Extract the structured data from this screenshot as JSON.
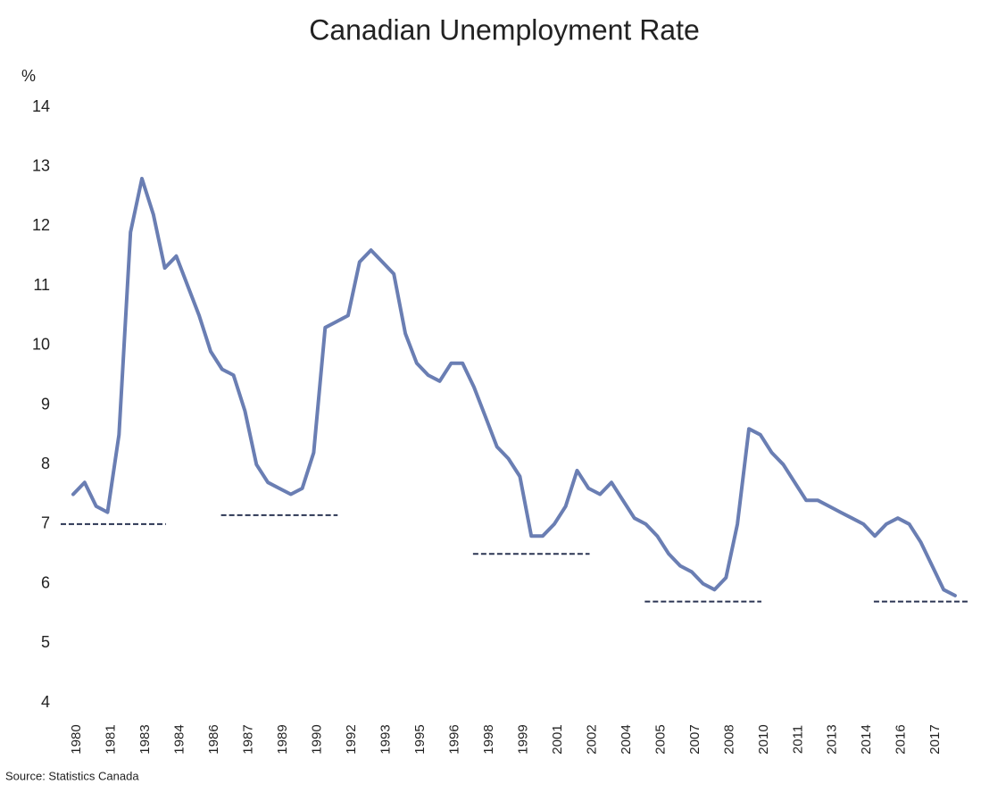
{
  "chart_data": {
    "type": "line",
    "title": "Canadian Unemployment Rate",
    "y_label": "%",
    "source": "Source: Statistics Canada",
    "color": "#6a7eb3",
    "categories": [
      "1980",
      null,
      null,
      "1981",
      null,
      null,
      "1983",
      null,
      null,
      "1984",
      null,
      null,
      "1986",
      null,
      null,
      "1987",
      null,
      null,
      "1989",
      null,
      null,
      "1990",
      null,
      null,
      "1992",
      null,
      null,
      "1993",
      null,
      null,
      "1995",
      null,
      null,
      "1996",
      null,
      null,
      "1998",
      null,
      null,
      "1999",
      null,
      null,
      "2001",
      null,
      null,
      "2002",
      null,
      null,
      "2004",
      null,
      null,
      "2005",
      null,
      null,
      "2007",
      null,
      null,
      "2008",
      null,
      null,
      "2010",
      null,
      null,
      "2011",
      null,
      null,
      "2013",
      null,
      null,
      "2014",
      null,
      null,
      "2016",
      null,
      null,
      "2017",
      null,
      null
    ],
    "values": [
      7.5,
      7.7,
      7.3,
      7.2,
      8.5,
      11.9,
      12.8,
      12.2,
      11.3,
      11.5,
      11.0,
      10.5,
      9.9,
      9.6,
      9.5,
      8.9,
      8.0,
      7.7,
      7.6,
      7.5,
      7.6,
      8.2,
      10.3,
      10.4,
      10.5,
      11.4,
      11.6,
      11.4,
      11.2,
      10.2,
      9.7,
      9.5,
      9.4,
      9.7,
      9.7,
      9.3,
      8.8,
      8.3,
      8.1,
      7.8,
      6.8,
      6.8,
      7.0,
      7.3,
      7.9,
      7.6,
      7.5,
      7.7,
      7.4,
      7.1,
      7.0,
      6.8,
      6.5,
      6.3,
      6.2,
      6.0,
      5.9,
      6.1,
      7.0,
      8.6,
      8.5,
      8.2,
      8.0,
      7.7,
      7.4,
      7.4,
      7.3,
      7.2,
      7.1,
      7.0,
      6.8,
      7.0,
      7.1,
      7.0,
      6.7,
      6.3,
      5.9,
      5.8
    ],
    "reference_lines": [
      {
        "value": 7.0,
        "start": 0,
        "end": 7
      },
      {
        "value": 7.15,
        "start": 14,
        "end": 22
      },
      {
        "value": 6.5,
        "start": 36,
        "end": 44
      },
      {
        "value": 5.7,
        "start": 51,
        "end": 59
      },
      {
        "value": 5.7,
        "start": 71,
        "end": 77
      }
    ],
    "ylim": [
      4,
      14
    ],
    "yticks": [
      4,
      5,
      6,
      7,
      8,
      9,
      10,
      11,
      12,
      13,
      14
    ],
    "grid": false
  }
}
